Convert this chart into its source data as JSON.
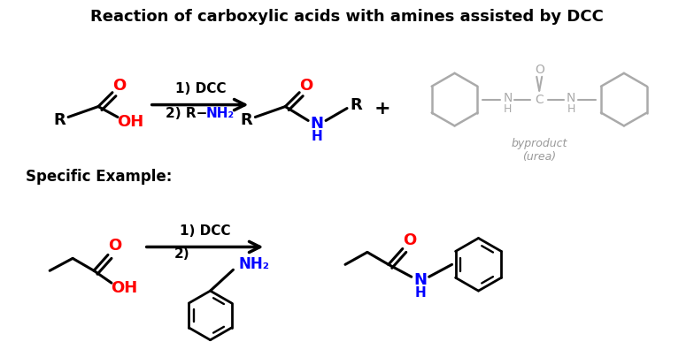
{
  "title": "Reaction of carboxylic acids with amines assisted by DCC",
  "specific_example_label": "Specific Example:",
  "bg_color": "#ffffff",
  "black": "#000000",
  "red": "#ff0000",
  "blue": "#0000ff",
  "gray": "#aaaaaa",
  "dark_gray": "#999999",
  "title_fontsize": 13,
  "byproduct_label": "byproduct\n(urea)"
}
